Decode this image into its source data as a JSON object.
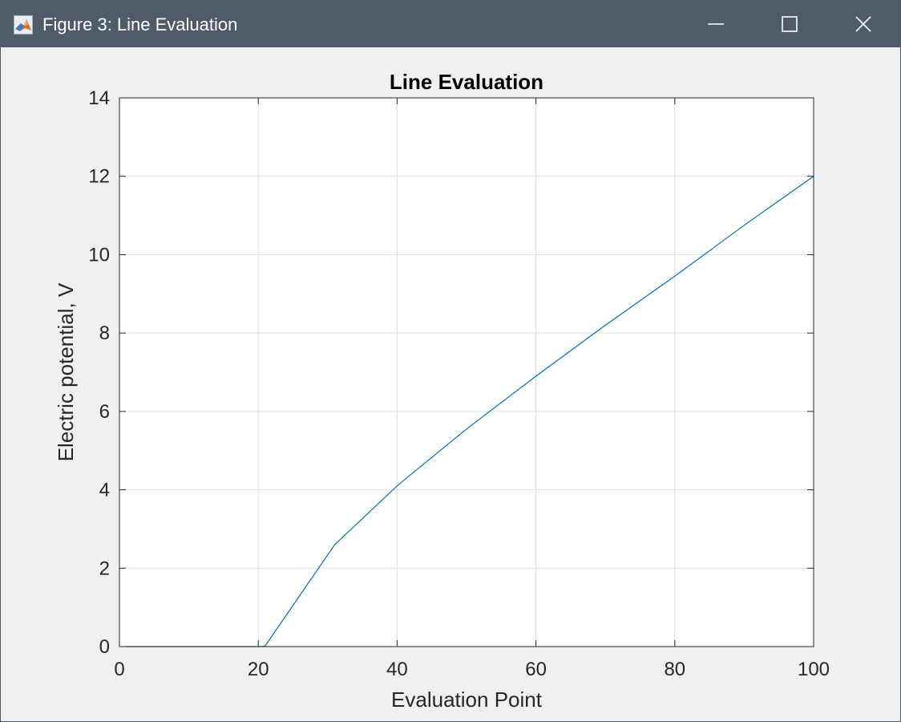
{
  "window": {
    "title": "Figure 3: Line Evaluation",
    "icon": "matlab-membrane-icon",
    "controls": [
      "minimize-icon",
      "maximize-icon",
      "close-icon"
    ],
    "titlebar_color": "#4f5b68"
  },
  "chart_data": {
    "type": "line",
    "title": "Line Evaluation",
    "xlabel": "Evaluation Point",
    "ylabel": "Electric potential, V",
    "xlim": [
      0,
      100
    ],
    "ylim": [
      0,
      14
    ],
    "xticks": [
      0,
      20,
      40,
      60,
      80,
      100
    ],
    "yticks": [
      0,
      2,
      4,
      6,
      8,
      10,
      12,
      14
    ],
    "grid": true,
    "line_color": "#0072bd",
    "series": [
      {
        "x": [
          1,
          20.5,
          21,
          31,
          40,
          41,
          50,
          60,
          70,
          80,
          90,
          100
        ],
        "y": [
          0,
          0,
          0.02,
          2.6,
          4.1,
          4.25,
          5.55,
          6.9,
          8.2,
          9.45,
          10.75,
          12.0
        ]
      }
    ]
  }
}
